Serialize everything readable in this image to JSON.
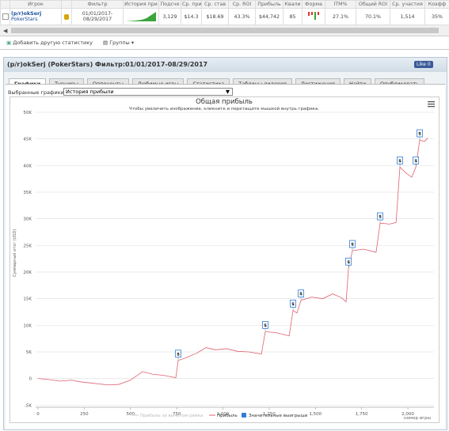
{
  "table": {
    "headers": [
      "Игрок",
      "Фильтр",
      "История при",
      "Подсче",
      "Ср. приб",
      "Ср. став",
      "Ср. ROI",
      "Прибыль",
      "Квали",
      "Форма",
      "ITM%",
      "Общий ROI",
      "Ср. участия",
      "Коэфф"
    ],
    "row": {
      "player": "(p/r)okSerj",
      "site": "PokerStars",
      "filter": "01/01/2017-08/29/2017",
      "count": "3,129",
      "avg_profit": "$14.3",
      "avg_stake": "$18.69",
      "avg_roi": "43.3%",
      "profit": "$44,742",
      "quali": "85",
      "itm": "27.1%",
      "total_roi": "70.1%",
      "avg_players": "1,514",
      "coef": "35%"
    }
  },
  "toolbar": {
    "add": "Добавить другую статистику",
    "groups": "Группы"
  },
  "panel": {
    "title": "(p/r)okSerj (PokerStars) Фильтр:01/01/2017-08/29/2017",
    "like": "Like 0",
    "tabs": [
      "Графики",
      "Турниры",
      "Оппоненты",
      "Любимые игры",
      "Статистика",
      "Таблицы лидеров",
      "Достижения",
      "Найти",
      "Опубликовать"
    ],
    "selected_label": "Выбранные графики:",
    "selected_value": "История прибыли"
  },
  "chart_data": {
    "type": "line",
    "title": "Общая прибыль",
    "subtitle": "Чтобы увеличить изображение, кликните и перетащите мышкой внутрь графика.",
    "y_label": "Суммарный итог (USD)",
    "x_label": "номер игры",
    "marker_symbol": "$",
    "grid": true,
    "xlim": [
      -13,
      2141
    ],
    "xticks": [
      0,
      250,
      500,
      750,
      {
        "value": 1000,
        "label": "1,000"
      },
      {
        "value": 1250,
        "label": "1,250"
      },
      {
        "value": 1500,
        "label": "1,500"
      },
      {
        "value": 1750,
        "label": "1,750"
      },
      {
        "value": 2000,
        "label": "2,000"
      }
    ],
    "ylim": [
      -5400,
      50000
    ],
    "yticks": [
      {
        "value": -5000,
        "label": "-5K"
      },
      0,
      {
        "value": 5000,
        "label": "5K"
      },
      {
        "value": 10000,
        "label": "10K"
      },
      {
        "value": 15000,
        "label": "15K"
      },
      {
        "value": 20000,
        "label": "20K"
      },
      {
        "value": 25000,
        "label": "25K"
      },
      {
        "value": 30000,
        "label": "30K"
      },
      {
        "value": 35000,
        "label": "35K"
      },
      {
        "value": 40000,
        "label": "40K"
      },
      {
        "value": 45000,
        "label": "45K"
      },
      {
        "value": 50000,
        "label": "50K"
      }
    ],
    "series": [
      {
        "name": "Прибыль за вычетом рейка",
        "color": "#cccccc",
        "visible": false
      },
      {
        "name": "Прибыль",
        "color": "#e06070",
        "x": [
          0,
          60,
          120,
          180,
          223,
          300,
          380,
          437,
          500,
          565,
          620,
          680,
          745,
          758,
          800,
          860,
          908,
          960,
          1020,
          1079,
          1140,
          1208,
          1229,
          1290,
          1358,
          1379,
          1400,
          1422,
          1480,
          1540,
          1593,
          1640,
          1666,
          1679,
          1700,
          1760,
          1828,
          1850,
          1900,
          1936,
          1957,
          1990,
          2021,
          2043,
          2064,
          2090,
          2107
        ],
        "values": [
          0,
          -200,
          -500,
          -300,
          -600,
          -900,
          -1200,
          -1100,
          -300,
          1300,
          800,
          600,
          150,
          3400,
          3900,
          4800,
          5800,
          5400,
          5600,
          5100,
          5000,
          4600,
          8800,
          8600,
          8000,
          12800,
          12300,
          14700,
          15300,
          15000,
          15900,
          15200,
          14400,
          20700,
          24000,
          24300,
          23700,
          29200,
          29000,
          29300,
          39700,
          38600,
          37800,
          39700,
          44800,
          44500,
          45200
        ]
      },
      {
        "name": "Значительные выигрыши",
        "color": "#2f7ed8",
        "x": [
          758,
          1229,
          1379,
          1422,
          1679,
          1700,
          1850,
          1957,
          2043,
          2064
        ],
        "values": [
          3400,
          8800,
          12800,
          14700,
          20700,
          24000,
          29200,
          39700,
          39700,
          44800
        ]
      }
    ]
  }
}
